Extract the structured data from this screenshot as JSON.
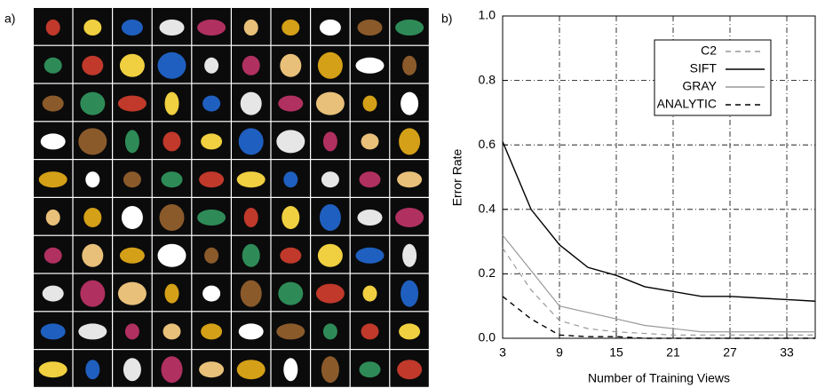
{
  "panel_labels": [
    "a)",
    "b)"
  ],
  "chart_data": {
    "type": "line",
    "xlabel": "Number of Training Views",
    "ylabel": "Error Rate",
    "x": [
      3,
      6,
      9,
      12,
      15,
      18,
      21,
      24,
      27,
      30,
      33,
      36
    ],
    "series": [
      {
        "name": "C2",
        "color": "#999999",
        "dashed": true,
        "values": [
          0.28,
          0.15,
          0.055,
          0.03,
          0.02,
          0.015,
          0.01,
          0.01,
          0.01,
          0.01,
          0.01,
          0.01
        ]
      },
      {
        "name": "SIFT",
        "color": "#000000",
        "dashed": false,
        "values": [
          0.61,
          0.4,
          0.29,
          0.22,
          0.195,
          0.16,
          0.145,
          0.13,
          0.13,
          0.125,
          0.12,
          0.115
        ]
      },
      {
        "name": "GRAY",
        "color": "#999999",
        "dashed": false,
        "values": [
          0.32,
          0.21,
          0.1,
          0.08,
          0.06,
          0.04,
          0.03,
          0.02,
          0.02,
          0.02,
          0.02,
          0.02
        ]
      },
      {
        "name": "ANALYTIC",
        "color": "#000000",
        "dashed": true,
        "values": [
          0.13,
          0.06,
          0.01,
          0.005,
          0.005,
          0,
          0,
          0,
          0,
          0,
          0,
          0
        ]
      }
    ],
    "xlim": [
      3,
      36
    ],
    "xticks": [
      3,
      9,
      15,
      21,
      27,
      33
    ],
    "ylim": [
      0,
      1
    ],
    "yticks": [
      {
        "value": 0,
        "label": "0.0"
      },
      0.2,
      0.4,
      0.6,
      0.8,
      {
        "value": 1,
        "label": "1.0"
      }
    ],
    "grid": true,
    "legend": "top-right"
  }
}
